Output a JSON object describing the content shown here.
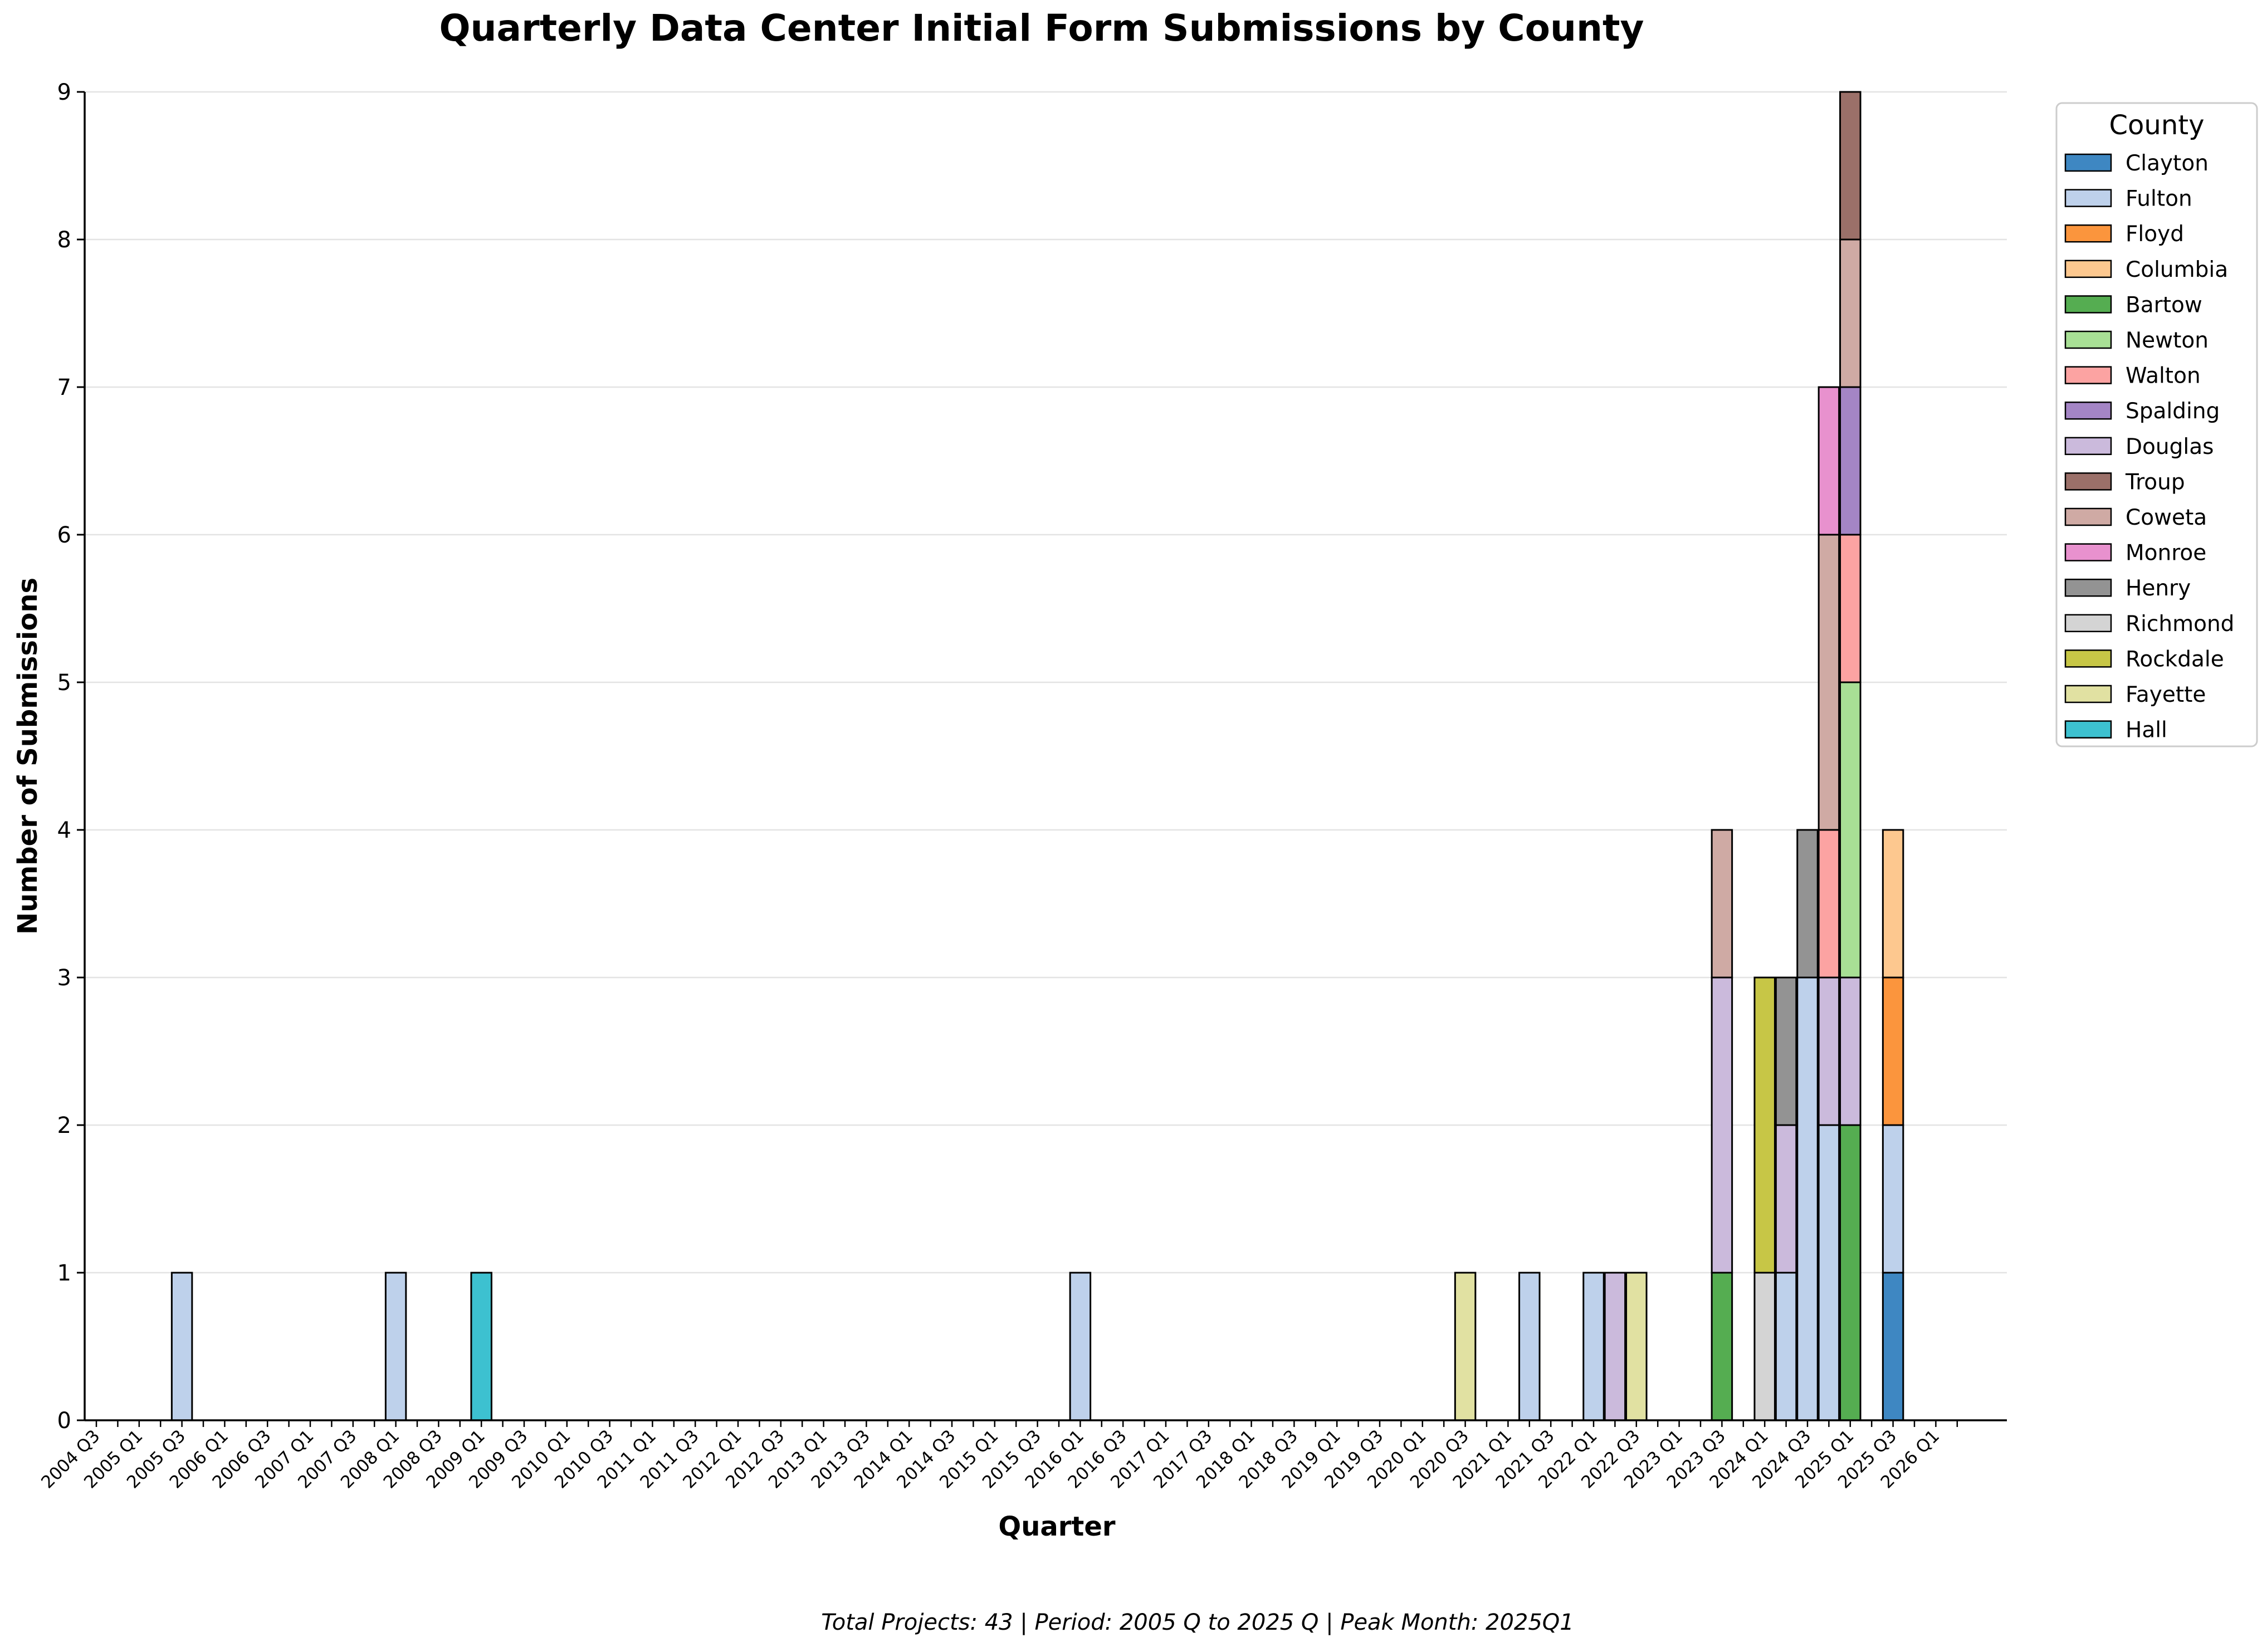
{
  "chart_data": {
    "type": "bar",
    "stacked": true,
    "title": "Quarterly Data Center Initial Form Submissions by County",
    "xlabel": "Quarter",
    "ylabel": "Number of Submissions",
    "ylim": [
      0,
      9
    ],
    "yticks": [
      0,
      1,
      2,
      3,
      4,
      5,
      6,
      7,
      8,
      9
    ],
    "grid": "horizontal",
    "legend_title": "County",
    "legend_placement": "upper right, outside plot",
    "tick_labels": [
      "2004 Q3",
      "2005 Q1",
      "2005 Q3",
      "2006 Q1",
      "2006 Q3",
      "2007 Q1",
      "2007 Q3",
      "2008 Q1",
      "2008 Q3",
      "2009 Q1",
      "2009 Q3",
      "2010 Q1",
      "2010 Q3",
      "2011 Q1",
      "2011 Q3",
      "2012 Q1",
      "2012 Q3",
      "2013 Q1",
      "2013 Q3",
      "2014 Q1",
      "2014 Q3",
      "2015 Q1",
      "2015 Q3",
      "2016 Q1",
      "2016 Q3",
      "2017 Q1",
      "2017 Q3",
      "2018 Q1",
      "2018 Q3",
      "2019 Q1",
      "2019 Q3",
      "2020 Q1",
      "2020 Q3",
      "2021 Q1",
      "2021 Q3",
      "2022 Q1",
      "2022 Q3",
      "2023 Q1",
      "2023 Q3",
      "2024 Q1",
      "2024 Q3",
      "2025 Q1",
      "2025 Q3",
      "2026 Q1"
    ],
    "quarters": [
      "2005 Q1",
      "2005 Q2",
      "2005 Q3",
      "2005 Q4",
      "2006 Q1",
      "2006 Q2",
      "2006 Q3",
      "2006 Q4",
      "2007 Q1",
      "2007 Q2",
      "2007 Q3",
      "2007 Q4",
      "2008 Q1",
      "2008 Q2",
      "2008 Q3",
      "2008 Q4",
      "2009 Q1",
      "2009 Q2",
      "2009 Q3",
      "2009 Q4",
      "2010 Q1",
      "2010 Q2",
      "2010 Q3",
      "2010 Q4",
      "2011 Q1",
      "2011 Q2",
      "2011 Q3",
      "2011 Q4",
      "2012 Q1",
      "2012 Q2",
      "2012 Q3",
      "2012 Q4",
      "2013 Q1",
      "2013 Q2",
      "2013 Q3",
      "2013 Q4",
      "2014 Q1",
      "2014 Q2",
      "2014 Q3",
      "2014 Q4",
      "2015 Q1",
      "2015 Q2",
      "2015 Q3",
      "2015 Q4",
      "2016 Q1",
      "2016 Q2",
      "2016 Q3",
      "2016 Q4",
      "2017 Q1",
      "2017 Q2",
      "2017 Q3",
      "2017 Q4",
      "2018 Q1",
      "2018 Q2",
      "2018 Q3",
      "2018 Q4",
      "2019 Q1",
      "2019 Q2",
      "2019 Q3",
      "2019 Q4",
      "2020 Q1",
      "2020 Q2",
      "2020 Q3",
      "2020 Q4",
      "2021 Q1",
      "2021 Q2",
      "2021 Q3",
      "2021 Q4",
      "2022 Q1",
      "2022 Q2",
      "2022 Q3",
      "2022 Q4",
      "2023 Q1",
      "2023 Q2",
      "2023 Q3",
      "2023 Q4",
      "2024 Q1",
      "2024 Q2",
      "2024 Q3",
      "2024 Q4",
      "2025 Q1",
      "2025 Q2",
      "2025 Q3"
    ],
    "series_order": [
      "Clayton",
      "Fulton",
      "Floyd",
      "Columbia",
      "Bartow",
      "Newton",
      "Walton",
      "Spalding",
      "Douglas",
      "Troup",
      "Coweta",
      "Monroe",
      "Henry",
      "Richmond",
      "Rockdale",
      "Fayette",
      "Hall"
    ],
    "stack_order": [
      "Clayton",
      "Bartow",
      "Richmond",
      "Fulton",
      "Rockdale",
      "Douglas",
      "Henry",
      "Floyd",
      "Newton",
      "Walton",
      "Columbia",
      "Spalding",
      "Coweta",
      "Troup",
      "Monroe",
      "Fayette",
      "Hall"
    ],
    "series": [
      {
        "name": "Clayton",
        "color": "#3e87c2",
        "values": {
          "2025 Q3": 1
        }
      },
      {
        "name": "Fulton",
        "color": "#bed1eb",
        "values": {
          "2005 Q3": 1,
          "2008 Q1": 1,
          "2016 Q1": 1,
          "2021 Q2": 1,
          "2022 Q1": 1,
          "2024 Q2": 1,
          "2024 Q3": 3,
          "2024 Q4": 2,
          "2025 Q3": 1
        }
      },
      {
        "name": "Floyd",
        "color": "#fb953d",
        "values": {
          "2025 Q3": 1
        }
      },
      {
        "name": "Columbia",
        "color": "#fdc88f",
        "values": {
          "2025 Q3": 1
        }
      },
      {
        "name": "Bartow",
        "color": "#55ad51",
        "values": {
          "2023 Q3": 1,
          "2025 Q1": 2
        }
      },
      {
        "name": "Newton",
        "color": "#a8df95",
        "values": {
          "2025 Q1": 2
        }
      },
      {
        "name": "Walton",
        "color": "#fca3a2",
        "values": {
          "2024 Q4": 1,
          "2025 Q1": 1
        }
      },
      {
        "name": "Spalding",
        "color": "#a485c5",
        "values": {
          "2025 Q1": 1
        }
      },
      {
        "name": "Douglas",
        "color": "#cbbadc",
        "values": {
          "2022 Q2": 1,
          "2023 Q3": 2,
          "2024 Q2": 1,
          "2024 Q4": 1,
          "2025 Q1": 1
        }
      },
      {
        "name": "Troup",
        "color": "#9b7069",
        "values": {
          "2025 Q1": 1
        }
      },
      {
        "name": "Coweta",
        "color": "#cfaaa4",
        "values": {
          "2023 Q3": 1,
          "2024 Q4": 2,
          "2025 Q1": 1
        }
      },
      {
        "name": "Monroe",
        "color": "#e891ce",
        "values": {
          "2024 Q4": 1
        }
      },
      {
        "name": "Henry",
        "color": "#939393",
        "values": {
          "2024 Q2": 1,
          "2024 Q3": 1
        }
      },
      {
        "name": "Richmond",
        "color": "#d4d4d4",
        "values": {
          "2024 Q1": 1
        }
      },
      {
        "name": "Rockdale",
        "color": "#c7c646",
        "values": {
          "2024 Q1": 2
        }
      },
      {
        "name": "Fayette",
        "color": "#e1e1a2",
        "values": {
          "2020 Q3": 1,
          "2022 Q3": 1
        }
      },
      {
        "name": "Hall",
        "color": "#3dc1d0",
        "values": {
          "2009 Q1": 1
        }
      }
    ]
  },
  "footer": {
    "note": "Total Projects: 43 | Period: 2005 Q to 2025 Q | Peak Month: 2025Q1"
  }
}
